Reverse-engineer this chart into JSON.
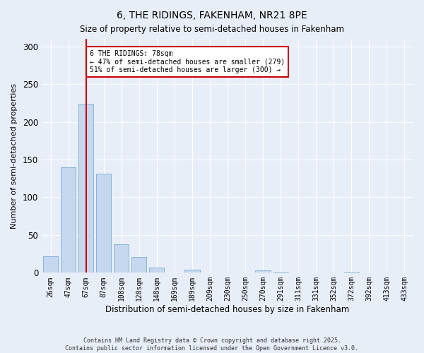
{
  "title": "6, THE RIDINGS, FAKENHAM, NR21 8PE",
  "subtitle": "Size of property relative to semi-detached houses in Fakenham",
  "xlabel": "Distribution of semi-detached houses by size in Fakenham",
  "ylabel": "Number of semi-detached properties",
  "bar_values": [
    22,
    140,
    224,
    131,
    38,
    21,
    7,
    0,
    4,
    0,
    0,
    0,
    3,
    1,
    0,
    0,
    0,
    1,
    0,
    0,
    0
  ],
  "categories": [
    "26sqm",
    "47sqm",
    "67sqm",
    "87sqm",
    "108sqm",
    "128sqm",
    "148sqm",
    "169sqm",
    "189sqm",
    "209sqm",
    "230sqm",
    "250sqm",
    "270sqm",
    "291sqm",
    "311sqm",
    "331sqm",
    "352sqm",
    "372sqm",
    "392sqm",
    "413sqm",
    "433sqm"
  ],
  "bar_color": "#c5d8ef",
  "bar_edge_color": "#7aadd4",
  "vline_color": "#cc0000",
  "annotation_title": "6 THE RIDINGS: 78sqm",
  "annotation_line1": "← 47% of semi-detached houses are smaller (279)",
  "annotation_line2": "51% of semi-detached houses are larger (300) →",
  "annotation_box_color": "#cc0000",
  "ylim": [
    0,
    310
  ],
  "yticks": [
    0,
    50,
    100,
    150,
    200,
    250,
    300
  ],
  "footer1": "Contains HM Land Registry data © Crown copyright and database right 2025.",
  "footer2": "Contains public sector information licensed under the Open Government Licence v3.0.",
  "bg_color": "#e8eef8",
  "plot_bg_color": "#e8eef8"
}
